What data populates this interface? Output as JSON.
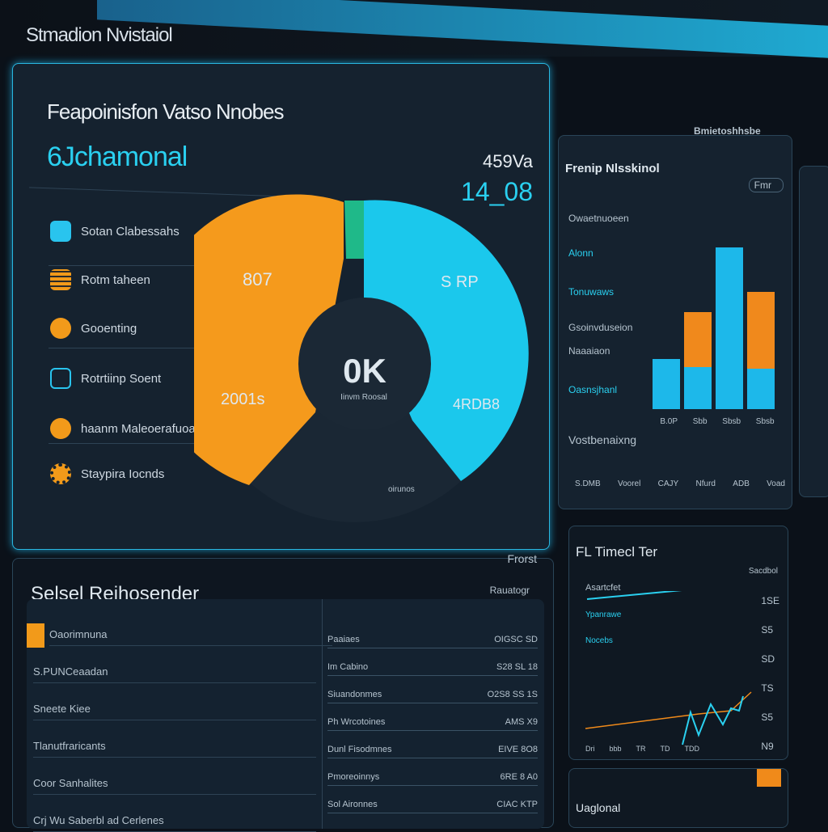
{
  "app": {
    "title": "Stmadion Nvistaiol"
  },
  "main": {
    "heading": "Feapoinisfon Vatso Nnobes",
    "subheading": "6Jchamonal",
    "stat_label": "459Va",
    "stat_value": "14_08",
    "legend": [
      {
        "label": "Sotan Clabessahs",
        "icon": "folder-icon",
        "color": "#29c4ee"
      },
      {
        "label": "Rotm taheen",
        "icon": "server-icon",
        "color": "#f29a1a"
      },
      {
        "label": "Gooenting",
        "icon": "warning-icon",
        "color": "#f29a1a"
      },
      {
        "label": "Rotrtiinp Soent",
        "icon": "document-icon",
        "color": "#29c4ee"
      },
      {
        "label": "haanm Maleoerafuoa",
        "icon": "person-icon",
        "color": "#f29a1a"
      },
      {
        "label": "Staypira Iocnds",
        "icon": "gear-icon",
        "color": "#f29a1a"
      }
    ],
    "donut": {
      "center_value": "0K",
      "center_label": "Iinvm Roosal",
      "bottom_label": "oirunos",
      "segments": [
        {
          "label": "807",
          "color": "#f7a21e"
        },
        {
          "label": "2001s",
          "color": "#f08a1a"
        },
        {
          "label": "S RP",
          "color": "#1fd0ee"
        },
        {
          "label": "4RDB8",
          "color": "#1ab3e6"
        },
        {
          "label": "",
          "color": "#1fb989"
        }
      ]
    }
  },
  "right_panel": {
    "header": "Bmietoshhsbe",
    "title": "Frenip Nlsskinol",
    "toggle": "Fmr",
    "labels": [
      "Owaetnuoeen",
      "Alonn",
      "Tonuwaws",
      "Gsoinvduseion",
      "Naaaiaon",
      "Oasnsjhanl",
      "Vostbenaixng"
    ],
    "bar_labels": [
      "B.0P",
      "Sbb",
      "Sbsb",
      "Sbsb"
    ],
    "axis_labels": [
      "S.DMB",
      "Voorel",
      "CAJY",
      "Nfurd",
      "ADB",
      "Voad"
    ],
    "bars": [
      {
        "blue": 62,
        "orange": 0
      },
      {
        "blue": 52,
        "orange": 68
      },
      {
        "blue": 200,
        "orange": 0
      },
      {
        "blue": 50,
        "orange": 95
      }
    ]
  },
  "bottom_left": {
    "title": "Selsel Reihosender",
    "corner": "Frorst",
    "header_right": "Rauatogr",
    "left_rows": [
      "Oaorimnuna",
      "S.PUNCeaadan",
      "Sneete Kiee",
      "Tlanutfraricants",
      "Coor Sanhalites",
      "Crj Wu Saberbl ad Cerlenes"
    ],
    "mid_rows": [
      "Paaiaes",
      "Im Cabino",
      "Siuandonmes",
      "Ph Wrcotoines",
      "Dunl Fisodmnes",
      "Pmoreoinnys",
      "Sol Aironnes"
    ],
    "values": [
      "OIGSC SD",
      "S28 SL 18",
      "O2S8 SS 1S",
      "AMS X9",
      "EIVE 8O8",
      "6RE 8 A0",
      "CIAC KTP"
    ]
  },
  "bottom_right": {
    "title": "FL Timecl Ter",
    "corner": "Sacdbol",
    "labels": [
      "Asartcfet",
      "Ypanrawe",
      "Nocebs"
    ],
    "values": [
      "1SE",
      "S5",
      "SD",
      "TS",
      "S5",
      "N9"
    ],
    "x_labels": [
      "Dri",
      "bbb",
      "TR",
      "TD",
      "TDD"
    ],
    "footer": "Uaglonal"
  }
}
